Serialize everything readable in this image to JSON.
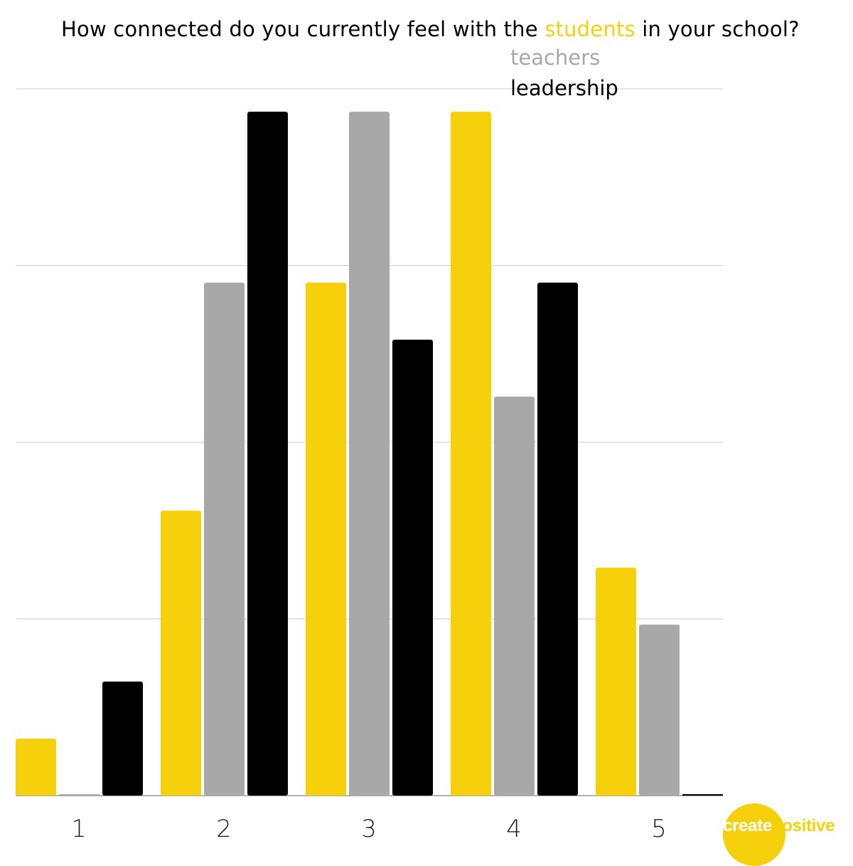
{
  "title": {
    "prefix": "How connected do you currently feel with the",
    "keyword": "students",
    "suffix": "in your school?",
    "alternatives": [
      "teachers",
      "leadership"
    ]
  },
  "logo": {
    "part1": "create",
    "part2": "positive"
  },
  "colors": {
    "students": "#f6d10b",
    "teachers": "#a8a8a8",
    "leadership": "#000000",
    "grid": "#cccccc"
  },
  "chart_data": {
    "type": "bar",
    "title": "How connected do you currently feel with the students in your school?",
    "xlabel": "",
    "ylabel": "",
    "categories": [
      "1",
      "2",
      "3",
      "4",
      "5"
    ],
    "series": [
      {
        "name": "students",
        "color": "#f6d10b",
        "values": [
          1,
          5,
          9,
          12,
          4
        ]
      },
      {
        "name": "teachers",
        "color": "#a8a8a8",
        "values": [
          0,
          9,
          12,
          7,
          3
        ]
      },
      {
        "name": "leadership",
        "color": "#000000",
        "values": [
          2,
          12,
          8,
          9,
          0
        ]
      }
    ],
    "ylim": [
      0,
      12.4
    ],
    "gridlines": [
      0,
      3.1,
      6.2,
      9.3,
      12.4
    ],
    "grid": true,
    "legend": "top-right, stacked under title keyword"
  }
}
